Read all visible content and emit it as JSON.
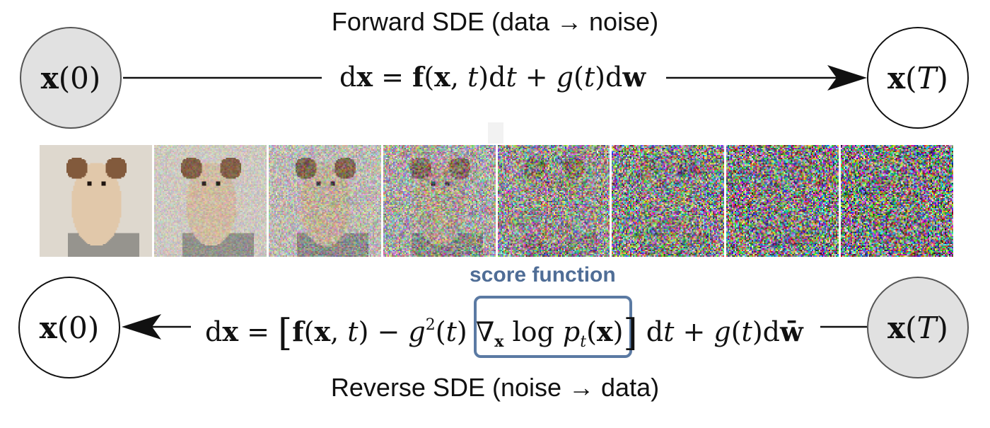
{
  "forward": {
    "title": "Forward SDE (data → noise)",
    "start_node": {
      "bold": "x",
      "rest": "(0)"
    },
    "end_node": {
      "bold": "x",
      "rest": "(",
      "italic": "T",
      "close": ")"
    },
    "equation": "dx = f(x, t)dt + g(t)dw"
  },
  "reverse": {
    "title": "Reverse SDE (noise → data)",
    "start_node": {
      "bold": "x",
      "rest": "(",
      "italic": "T",
      "close": ")"
    },
    "end_node": {
      "bold": "x",
      "rest": "(0)"
    },
    "equation": "dx = [f(x, t) − g²(t)∇ₓ log pₜ(x)] dt + g(t)dw̄"
  },
  "score": {
    "label": "score function",
    "color": "#5b7aa3"
  },
  "strip": {
    "frames": 8,
    "description_noise_levels": [
      0,
      0.18,
      0.35,
      0.55,
      0.75,
      0.88,
      0.96,
      1.0
    ]
  }
}
